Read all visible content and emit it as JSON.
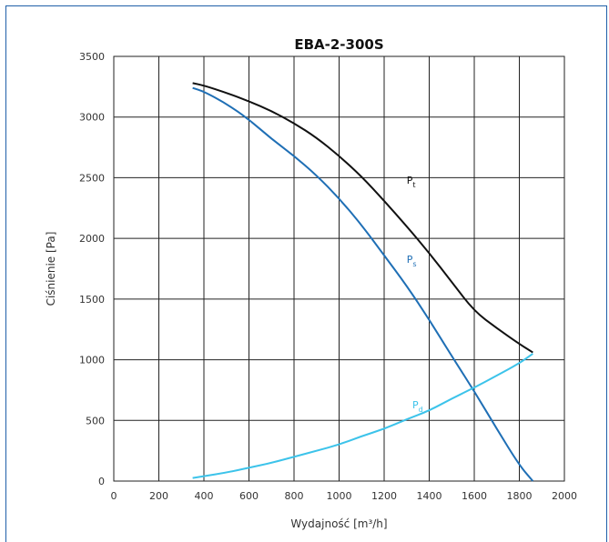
{
  "chart_data": {
    "type": "line",
    "title": "EBA-2-300S",
    "xlabel": "Wydajność [m³/h]",
    "ylabel": "Ciśnienie [Pa]",
    "xlim": [
      0,
      2000
    ],
    "ylim": [
      0,
      3500
    ],
    "xticks": [
      "0",
      "200",
      "400",
      "600",
      "800",
      "1000",
      "1200",
      "1400",
      "1600",
      "1800",
      "2000"
    ],
    "yticks": [
      "0",
      "500",
      "1000",
      "1500",
      "2000",
      "2500",
      "3000",
      "3500"
    ],
    "grid": true,
    "series": [
      {
        "name": "Pt",
        "label_main": "P",
        "label_sub": "t",
        "color": "#111111",
        "x": [
          350,
          400,
          500,
          600,
          700,
          800,
          900,
          1000,
          1100,
          1200,
          1300,
          1400,
          1500,
          1600,
          1700,
          1800,
          1860
        ],
        "y": [
          3280,
          3260,
          3200,
          3130,
          3050,
          2950,
          2830,
          2680,
          2510,
          2310,
          2100,
          1880,
          1640,
          1400,
          1260,
          1130,
          1060
        ]
      },
      {
        "name": "Ps",
        "label_main": "P",
        "label_sub": "s",
        "color": "#1f6fb5",
        "x": [
          350,
          400,
          500,
          600,
          700,
          800,
          900,
          1000,
          1100,
          1200,
          1300,
          1400,
          1500,
          1600,
          1700,
          1800,
          1860
        ],
        "y": [
          3240,
          3210,
          3110,
          2980,
          2820,
          2680,
          2520,
          2330,
          2110,
          1860,
          1610,
          1330,
          1030,
          740,
          430,
          130,
          0
        ]
      },
      {
        "name": "Pd",
        "label_main": "P",
        "label_sub": "d",
        "color": "#3cc3ea",
        "x": [
          350,
          400,
          500,
          600,
          700,
          800,
          900,
          1000,
          1100,
          1200,
          1300,
          1400,
          1500,
          1600,
          1700,
          1800,
          1860
        ],
        "y": [
          25,
          40,
          70,
          110,
          150,
          200,
          250,
          300,
          370,
          430,
          510,
          580,
          680,
          770,
          870,
          970,
          1050
        ]
      }
    ]
  }
}
